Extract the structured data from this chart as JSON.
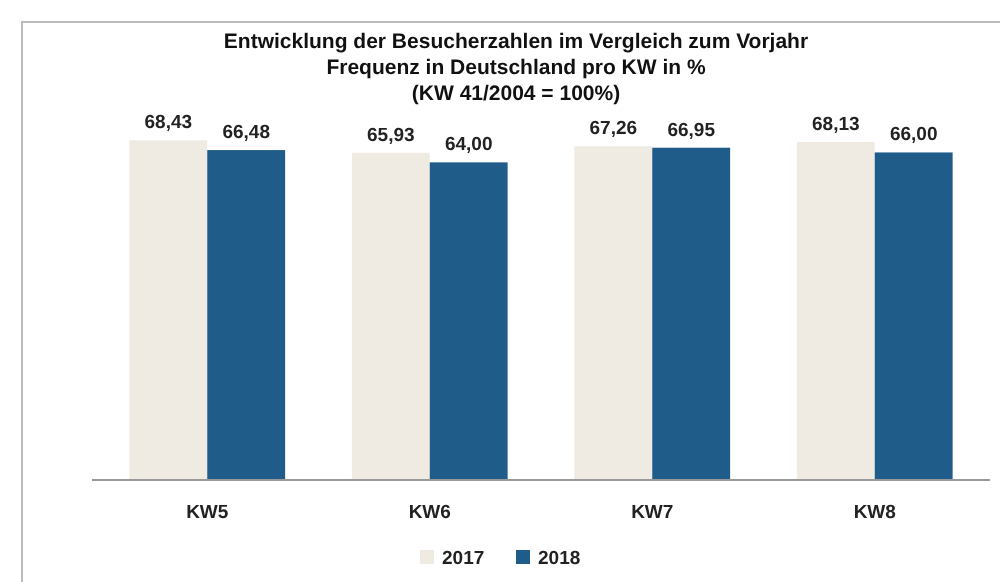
{
  "chart_data": {
    "type": "bar",
    "title": "Entwicklung der Besucherzahlen im Vergleich zum Vorjahr\nFrequenz in Deutschland pro KW in %\n(KW 41/2004 = 100%)",
    "categories": [
      "KW5",
      "KW6",
      "KW7",
      "KW8"
    ],
    "series": [
      {
        "name": "2017",
        "color": "#efebe3",
        "values": [
          68.43,
          65.93,
          67.26,
          68.13
        ],
        "value_labels": [
          "68,43",
          "65,93",
          "67,26",
          "68,13"
        ]
      },
      {
        "name": "2018",
        "color": "#1f5c8a",
        "values": [
          66.48,
          64.0,
          66.95,
          66.0
        ],
        "value_labels": [
          "66,48",
          "64,00",
          "66,95",
          "66,00"
        ]
      }
    ],
    "legend": "bottom",
    "grid": false,
    "tick_labels": "x"
  }
}
